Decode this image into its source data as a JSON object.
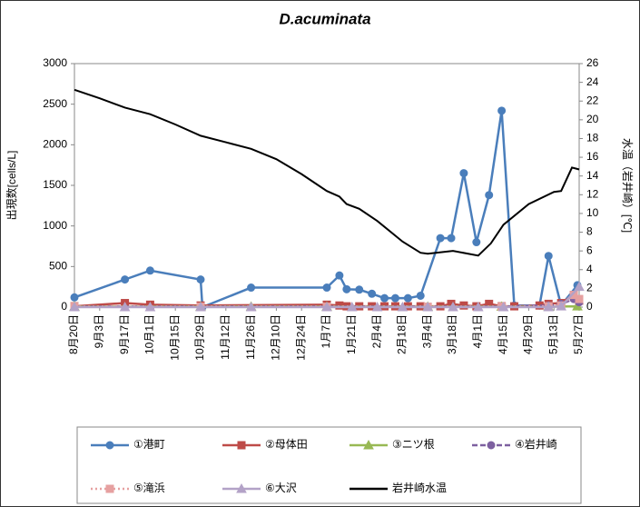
{
  "chart_data": {
    "type": "line",
    "title": "D.acuminata",
    "ylabel": "出現数[cells/L]",
    "y2label": "水温（岩井崎）[℃]",
    "xlim": [
      "8月20日",
      "5月27日"
    ],
    "xticks": [
      "8月20日",
      "9月3日",
      "9月17日",
      "10月1日",
      "10月15日",
      "10月29日",
      "11月12日",
      "11月26日",
      "12月10日",
      "12月24日",
      "1月7日",
      "1月21日",
      "2月4日",
      "2月18日",
      "3月4日",
      "3月18日",
      "4月1日",
      "4月15日",
      "4月29日",
      "5月13日",
      "5月27日"
    ],
    "ylim": [
      0,
      3000
    ],
    "yticks": [
      0,
      500,
      1000,
      1500,
      2000,
      2500,
      3000
    ],
    "y2lim": [
      0,
      26
    ],
    "y2ticks": [
      0,
      2,
      4,
      6,
      8,
      10,
      12,
      14,
      16,
      18,
      20,
      22,
      24,
      26
    ],
    "series": [
      {
        "name": "①港町",
        "color": "#4a7ebb",
        "marker": "circle",
        "dash": "solid",
        "x": [
          "8月20日",
          "9月17日",
          "10月1日",
          "10月29日",
          "10月30日",
          "11月26日",
          "1月7日",
          "1月14日",
          "1月18日",
          "1月25日",
          "2月1日",
          "2月8日",
          "2月14日",
          "2月21日",
          "2月28日",
          "3月11日",
          "3月17日",
          "3月24日",
          "3月31日",
          "4月7日",
          "4月14日",
          "4月21日",
          "5月5日",
          "5月10日",
          "5月17日",
          "5月26日"
        ],
        "values": [
          120,
          340,
          450,
          340,
          0,
          240,
          240,
          390,
          220,
          215,
          165,
          110,
          110,
          110,
          140,
          850,
          850,
          1650,
          800,
          1380,
          2420,
          20,
          20,
          630,
          20,
          270
        ]
      },
      {
        "name": "②母体田",
        "color": "#be4b48",
        "marker": "square",
        "dash": "solid",
        "x": [
          "8月20日",
          "9月17日",
          "10月1日",
          "10月29日",
          "1月7日",
          "1月14日",
          "1月18日",
          "1月25日",
          "2月1日",
          "2月8日",
          "2月14日",
          "2月21日",
          "2月28日",
          "3月11日",
          "3月17日",
          "3月24日",
          "3月31日",
          "4月7日",
          "4月14日",
          "4月21日",
          "5月5日",
          "5月10日",
          "5月17日",
          "5月24日",
          "5月27日"
        ],
        "values": [
          10,
          50,
          30,
          20,
          30,
          20,
          10,
          10,
          10,
          10,
          10,
          10,
          10,
          10,
          40,
          20,
          10,
          40,
          10,
          10,
          20,
          40,
          50,
          150,
          80
        ]
      },
      {
        "name": "③ニツ根",
        "color": "#98b954",
        "marker": "triangle",
        "dash": "solid",
        "x": [
          "8月20日",
          "10月29日",
          "11月26日",
          "1月7日",
          "3月4日",
          "4月14日",
          "5月10日",
          "5月26日"
        ],
        "values": [
          5,
          5,
          5,
          5,
          5,
          5,
          5,
          10
        ]
      },
      {
        "name": "④岩井崎",
        "color": "#7d60a0",
        "marker": "circle",
        "dash": "dash",
        "x": [
          "8月20日",
          "10月29日",
          "1月7日",
          "3月4日",
          "4月14日",
          "5月10日",
          "5月17日",
          "5月24日",
          "5月27日"
        ],
        "values": [
          5,
          5,
          5,
          5,
          5,
          20,
          40,
          100,
          60
        ]
      },
      {
        "name": "⑤滝浜",
        "color": "#e6a0a0",
        "marker": "square",
        "dash": "dot",
        "x": [
          "8月20日",
          "10月29日",
          "1月7日",
          "3月4日",
          "4月14日",
          "5月10日",
          "5月17日",
          "5月24日",
          "5月27日"
        ],
        "values": [
          5,
          5,
          5,
          5,
          5,
          10,
          20,
          150,
          100
        ]
      },
      {
        "name": "⑥大沢",
        "color": "#b3a2c7",
        "marker": "triangle",
        "dash": "solid",
        "x": [
          "8月20日",
          "9月17日",
          "10月1日",
          "10月29日",
          "11月26日",
          "1月7日",
          "1月21日",
          "2月4日",
          "2月18日",
          "3月4日",
          "3月18日",
          "4月1日",
          "4月15日",
          "5月10日",
          "5月17日",
          "5月27日"
        ],
        "values": [
          0,
          0,
          0,
          0,
          0,
          0,
          0,
          0,
          0,
          0,
          0,
          0,
          0,
          0,
          10,
          250
        ]
      },
      {
        "name": "岩井崎水温",
        "color": "#000000",
        "marker": "none",
        "dash": "solid",
        "axis": "y2",
        "x": [
          "8月20日",
          "9月3日",
          "9月17日",
          "10月1日",
          "10月15日",
          "10月29日",
          "11月12日",
          "11月26日",
          "12月10日",
          "12月24日",
          "1月7日",
          "1月14日",
          "1月18日",
          "1月25日",
          "2月4日",
          "2月18日",
          "2月28日",
          "3月4日",
          "3月18日",
          "4月1日",
          "4月8日",
          "4月15日",
          "4月29日",
          "5月13日",
          "5月17日",
          "5月23日",
          "5月27日"
        ],
        "values": [
          23.2,
          22.3,
          21.3,
          20.6,
          19.5,
          18.3,
          17.6,
          16.9,
          15.8,
          14.2,
          12.4,
          11.8,
          11.0,
          10.5,
          9.2,
          7.0,
          5.8,
          5.7,
          6.0,
          5.5,
          6.8,
          8.8,
          11.0,
          12.3,
          12.4,
          14.9,
          14.7
        ]
      }
    ]
  }
}
